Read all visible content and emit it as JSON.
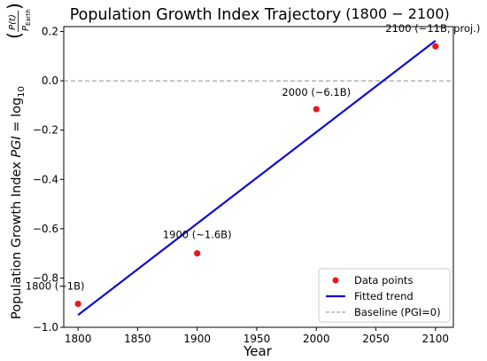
{
  "chart_data": {
    "type": "scatter",
    "title": "Population Growth Index Trajectory",
    "title_range": "(1800 − 2100)",
    "ylabel": "Population Growth Index PGI = log10(P(t) / PEarth)",
    "ylabel_parts": {
      "prefix": "Population Growth Index ",
      "variable": "PGI",
      "equals": " = log",
      "log_base": "10",
      "fraction_numerator": "P(t)",
      "fraction_denominator_main": "P",
      "fraction_denominator_sub": "Earth"
    },
    "xlabel": "Year",
    "xlim": [
      1788,
      2115
    ],
    "ylim": [
      -1.0,
      0.22
    ],
    "x_ticks": [
      1800,
      1850,
      1900,
      1950,
      2000,
      2050,
      2100
    ],
    "x_tick_labels": [
      "1800",
      "1850",
      "1900",
      "1950",
      "2000",
      "2050",
      "2100"
    ],
    "y_ticks": [
      0.2,
      0.0,
      -0.2,
      -0.4,
      -0.6,
      -0.8,
      -1.0
    ],
    "y_tick_labels": [
      "0.2",
      "0.0",
      "−0.2",
      "−0.4",
      "−0.6",
      "−0.8",
      "−1.0"
    ],
    "grid": false,
    "legend_position": "bottom-right",
    "series": [
      {
        "name": "Data points",
        "kind": "scatter",
        "color": "#e8191c",
        "points": [
          {
            "x": 1800,
            "y": -0.905,
            "label": "1800 (~1B)"
          },
          {
            "x": 1900,
            "y": -0.7,
            "label": "1900 (~1.6B)"
          },
          {
            "x": 2000,
            "y": -0.115,
            "label": "2000 (~6.1B)"
          },
          {
            "x": 2100,
            "y": 0.14,
            "label": "2100 (~11B, proj.)"
          }
        ]
      },
      {
        "name": "Fitted trend",
        "kind": "line",
        "color": "#0b0bd6",
        "points": [
          {
            "x": 1800,
            "y": -0.95
          },
          {
            "x": 2100,
            "y": 0.163
          }
        ]
      },
      {
        "name": "Baseline (PGI=0)",
        "kind": "dashed-line",
        "color": "#8c8c8c",
        "y": 0.0
      }
    ]
  }
}
